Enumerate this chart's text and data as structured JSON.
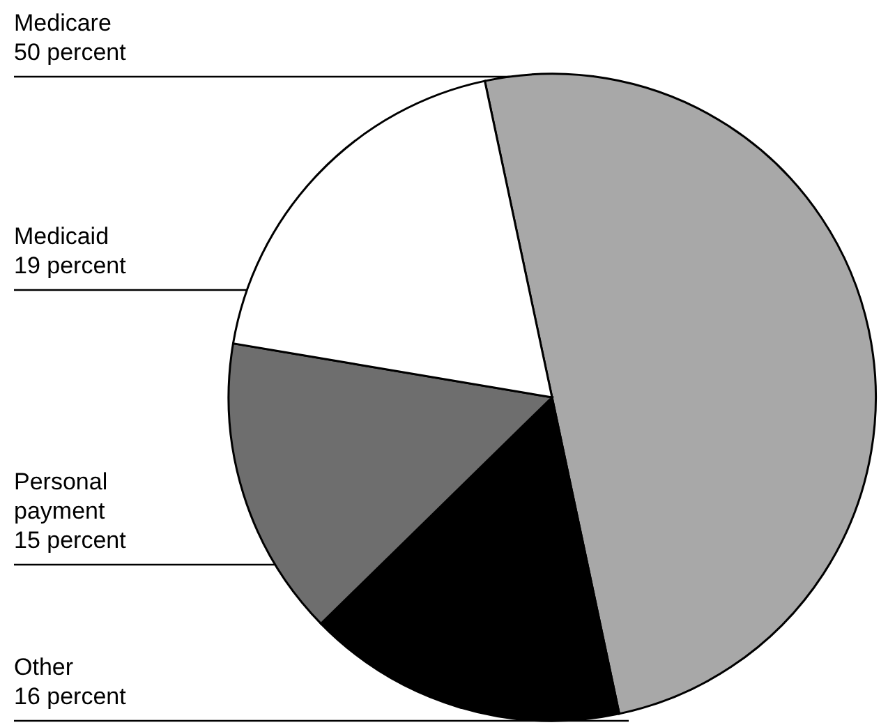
{
  "chart_data": {
    "type": "pie",
    "categories": [
      "Medicare",
      "Other",
      "Personal payment",
      "Medicaid"
    ],
    "values": [
      50,
      16,
      15,
      19
    ],
    "value_labels": [
      "50 percent",
      "16 percent",
      "15 percent",
      "19 percent"
    ],
    "colors": [
      "#a8a8a8",
      "#000000",
      "#6e6e6e",
      "#ffffff"
    ]
  }
}
